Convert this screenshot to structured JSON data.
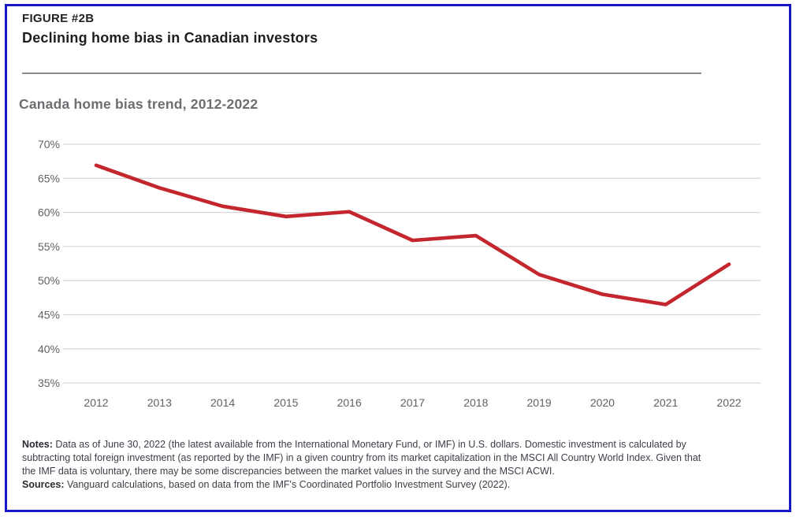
{
  "header": {
    "figure_label": "FIGURE #2B",
    "figure_title": "Declining home bias in Canadian investors"
  },
  "chart_data": {
    "type": "line",
    "title": "Canada home bias trend, 2012-2022",
    "x": [
      2012,
      2013,
      2014,
      2015,
      2016,
      2017,
      2018,
      2019,
      2020,
      2021,
      2022
    ],
    "values": [
      66.9,
      63.6,
      60.9,
      59.4,
      60.1,
      55.9,
      56.6,
      50.9,
      48.0,
      46.5,
      52.4
    ],
    "unit": "%",
    "ylim": [
      35,
      70
    ],
    "ytick_step": 5,
    "ytick_labels": [
      "70%",
      "65%",
      "60%",
      "55%",
      "50%",
      "45%",
      "40%",
      "35%"
    ],
    "grid": true,
    "legend": "none",
    "line_color": "#c4262e",
    "grid_color": "#d8d8d8"
  },
  "notes": {
    "label": "Notes:",
    "lines": [
      "Data as of June 30, 2022 (the latest available from the International Monetary Fund, or IMF) in U.S. dollars. Domestic investment is calculated by",
      "subtracting total foreign investment (as reported by the IMF) in a given country from its market capitalization in the MSCI All Country World Index. Given that",
      "the IMF data is voluntary, there may be some discrepancies between the market values in the survey and the MSCI ACWI."
    ]
  },
  "sources": {
    "label": "Sources:",
    "text": "Vanguard calculations, based on data from the IMF's Coordinated Portfolio Investment Survey (2022)."
  },
  "colors": {
    "frame_border": "#1717c4",
    "accent_line": "#c4262e",
    "title_text": "#1e1e22",
    "subtitle_text": "#6d6d72",
    "axis_text": "#616166"
  }
}
